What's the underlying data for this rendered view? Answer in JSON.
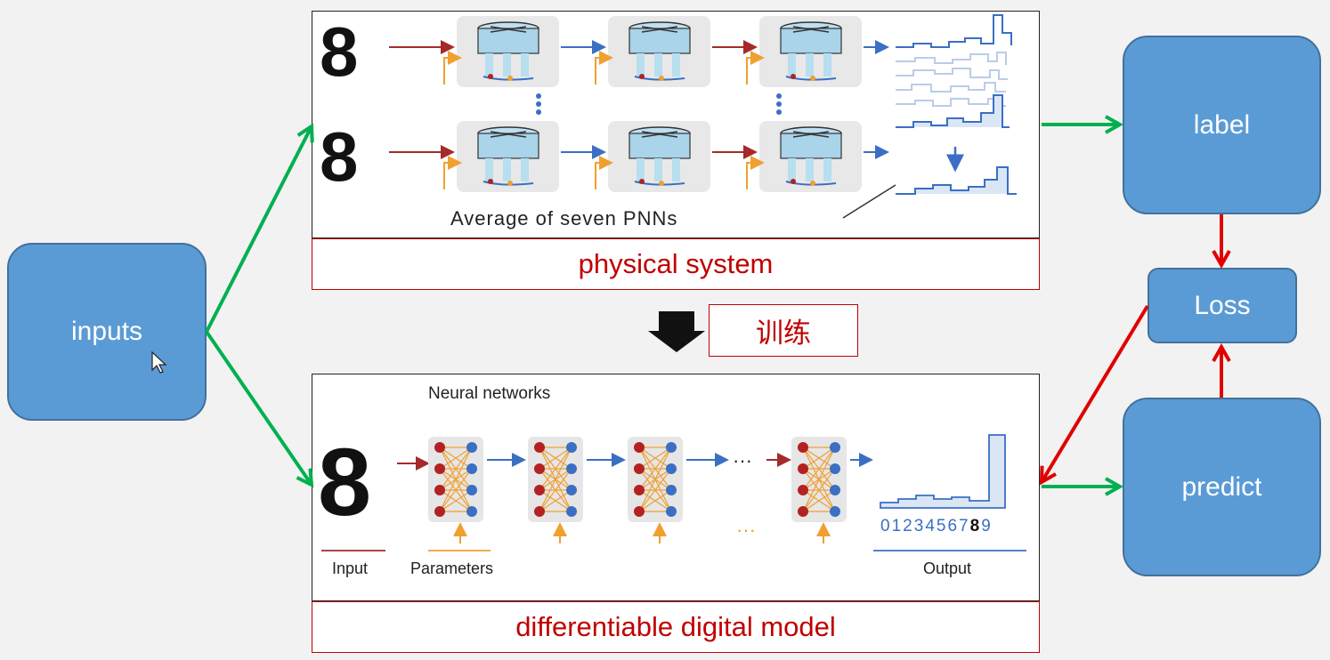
{
  "nodes": {
    "inputs": "inputs",
    "label": "label",
    "loss": "Loss",
    "predict": "predict"
  },
  "physical": {
    "caption": "physical system",
    "average_text": "Average of seven PNNs"
  },
  "training": {
    "label": "训练"
  },
  "digital": {
    "caption": "differentiable digital model",
    "title": "Neural networks",
    "input_label": "Input",
    "parameters_label": "Parameters",
    "output_label": "Output",
    "ellipsis": "···",
    "output_digits": [
      "0",
      "1",
      "2",
      "3",
      "4",
      "5",
      "6",
      "7",
      "8",
      "9"
    ]
  },
  "colors": {
    "green_arrow": "#00b050",
    "red_arrow": "#e00000",
    "node_fill": "#5b9bd5",
    "caption_red": "#c00000",
    "pipeline_red": "#a52a2a",
    "pipeline_orange": "#f0a030",
    "pipeline_blue": "#3a6fc4"
  }
}
